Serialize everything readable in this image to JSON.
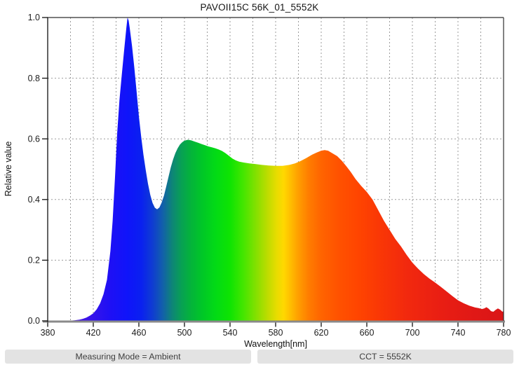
{
  "chart_data": {
    "type": "area",
    "title": "PAVOII15C 56K_01_5552K",
    "xlabel": "Wavelength[nm]",
    "ylabel": "Relative value",
    "xlim": [
      380,
      780
    ],
    "ylim": [
      0,
      1
    ],
    "x_ticks": [
      380,
      420,
      460,
      500,
      540,
      580,
      620,
      660,
      700,
      740,
      780
    ],
    "y_ticks": [
      0,
      0.2,
      0.4,
      0.6,
      0.8,
      1
    ],
    "grid": {
      "show": true,
      "x_step": 20,
      "y_step": 0.2,
      "style": "dashed",
      "color": "#9b9b9b"
    },
    "axis_color": "#2f2f2f",
    "baseline_color": "#8a8a8a",
    "series_name": "relative spectral power",
    "points": [
      [
        380,
        0
      ],
      [
        398,
        0
      ],
      [
        404,
        0.002
      ],
      [
        408,
        0.004
      ],
      [
        411,
        0.007
      ],
      [
        414,
        0.011
      ],
      [
        417,
        0.017
      ],
      [
        420,
        0.025
      ],
      [
        423,
        0.038
      ],
      [
        426,
        0.058
      ],
      [
        429,
        0.088
      ],
      [
        432,
        0.135
      ],
      [
        435,
        0.23
      ],
      [
        437,
        0.33
      ],
      [
        439,
        0.47
      ],
      [
        441,
        0.62
      ],
      [
        443,
        0.73
      ],
      [
        445,
        0.81
      ],
      [
        447,
        0.89
      ],
      [
        449,
        0.965
      ],
      [
        450,
        1
      ],
      [
        451,
        0.99
      ],
      [
        452,
        0.965
      ],
      [
        454,
        0.905
      ],
      [
        456,
        0.835
      ],
      [
        458,
        0.755
      ],
      [
        460,
        0.675
      ],
      [
        462,
        0.607
      ],
      [
        464,
        0.548
      ],
      [
        466,
        0.497
      ],
      [
        468,
        0.452
      ],
      [
        470,
        0.415
      ],
      [
        472,
        0.389
      ],
      [
        474,
        0.373
      ],
      [
        476,
        0.368
      ],
      [
        478,
        0.374
      ],
      [
        480,
        0.39
      ],
      [
        482,
        0.413
      ],
      [
        484,
        0.443
      ],
      [
        486,
        0.475
      ],
      [
        488,
        0.506
      ],
      [
        490,
        0.532
      ],
      [
        492,
        0.553
      ],
      [
        494,
        0.569
      ],
      [
        496,
        0.581
      ],
      [
        498,
        0.589
      ],
      [
        500,
        0.594
      ],
      [
        503,
        0.597
      ],
      [
        506,
        0.595
      ],
      [
        509,
        0.591
      ],
      [
        512,
        0.587
      ],
      [
        515,
        0.583
      ],
      [
        518,
        0.579
      ],
      [
        521,
        0.575
      ],
      [
        524,
        0.572
      ],
      [
        527,
        0.569
      ],
      [
        530,
        0.565
      ],
      [
        533,
        0.56
      ],
      [
        536,
        0.553
      ],
      [
        539,
        0.544
      ],
      [
        542,
        0.535
      ],
      [
        545,
        0.529
      ],
      [
        548,
        0.525
      ],
      [
        552,
        0.522
      ],
      [
        557,
        0.519
      ],
      [
        562,
        0.517
      ],
      [
        568,
        0.514
      ],
      [
        574,
        0.512
      ],
      [
        580,
        0.511
      ],
      [
        586,
        0.511
      ],
      [
        592,
        0.514
      ],
      [
        597,
        0.519
      ],
      [
        602,
        0.527
      ],
      [
        607,
        0.537
      ],
      [
        612,
        0.548
      ],
      [
        616,
        0.555
      ],
      [
        620,
        0.561
      ],
      [
        623,
        0.563
      ],
      [
        626,
        0.561
      ],
      [
        630,
        0.552
      ],
      [
        634,
        0.543
      ],
      [
        638,
        0.528
      ],
      [
        642,
        0.51
      ],
      [
        646,
        0.49
      ],
      [
        650,
        0.468
      ],
      [
        655,
        0.445
      ],
      [
        660,
        0.425
      ],
      [
        665,
        0.4
      ],
      [
        670,
        0.365
      ],
      [
        675,
        0.33
      ],
      [
        680,
        0.3
      ],
      [
        685,
        0.27
      ],
      [
        690,
        0.245
      ],
      [
        695,
        0.217
      ],
      [
        700,
        0.192
      ],
      [
        705,
        0.172
      ],
      [
        710,
        0.154
      ],
      [
        715,
        0.139
      ],
      [
        720,
        0.126
      ],
      [
        725,
        0.112
      ],
      [
        730,
        0.097
      ],
      [
        735,
        0.082
      ],
      [
        740,
        0.068
      ],
      [
        745,
        0.058
      ],
      [
        750,
        0.05
      ],
      [
        755,
        0.044
      ],
      [
        758,
        0.042
      ],
      [
        761,
        0.039
      ],
      [
        763,
        0.041
      ],
      [
        765,
        0.045
      ],
      [
        767,
        0.04
      ],
      [
        769,
        0.032
      ],
      [
        771,
        0.03
      ],
      [
        773,
        0.036
      ],
      [
        775,
        0.041
      ],
      [
        777,
        0.037
      ],
      [
        779,
        0.03
      ],
      [
        780,
        0.032
      ]
    ],
    "gradient_stops": [
      [
        380,
        "#5A0FD2"
      ],
      [
        415,
        "#3C14E8"
      ],
      [
        435,
        "#1E10F5"
      ],
      [
        450,
        "#0F14FA"
      ],
      [
        462,
        "#0A20F0"
      ],
      [
        472,
        "#0F3CD2"
      ],
      [
        481,
        "#1260AA"
      ],
      [
        489,
        "#0E8478"
      ],
      [
        497,
        "#08A055"
      ],
      [
        505,
        "#04B23C"
      ],
      [
        515,
        "#00C628"
      ],
      [
        527,
        "#02DA16"
      ],
      [
        540,
        "#0EE402"
      ],
      [
        552,
        "#46E600"
      ],
      [
        563,
        "#85E000"
      ],
      [
        573,
        "#BEDC00"
      ],
      [
        581,
        "#E8DC00"
      ],
      [
        587,
        "#FFD800"
      ],
      [
        593,
        "#FFBE00"
      ],
      [
        600,
        "#FF9E00"
      ],
      [
        609,
        "#FF7D00"
      ],
      [
        620,
        "#FF6400"
      ],
      [
        635,
        "#FF5200"
      ],
      [
        652,
        "#FF4500"
      ],
      [
        670,
        "#FA3805"
      ],
      [
        695,
        "#F2290E"
      ],
      [
        725,
        "#E91E13"
      ],
      [
        755,
        "#E01816"
      ],
      [
        780,
        "#DA1517"
      ]
    ]
  },
  "footer": {
    "measuring_mode": "Measuring Mode = Ambient",
    "cct": "CCT = 5552K",
    "background": "#e3e3e3"
  }
}
